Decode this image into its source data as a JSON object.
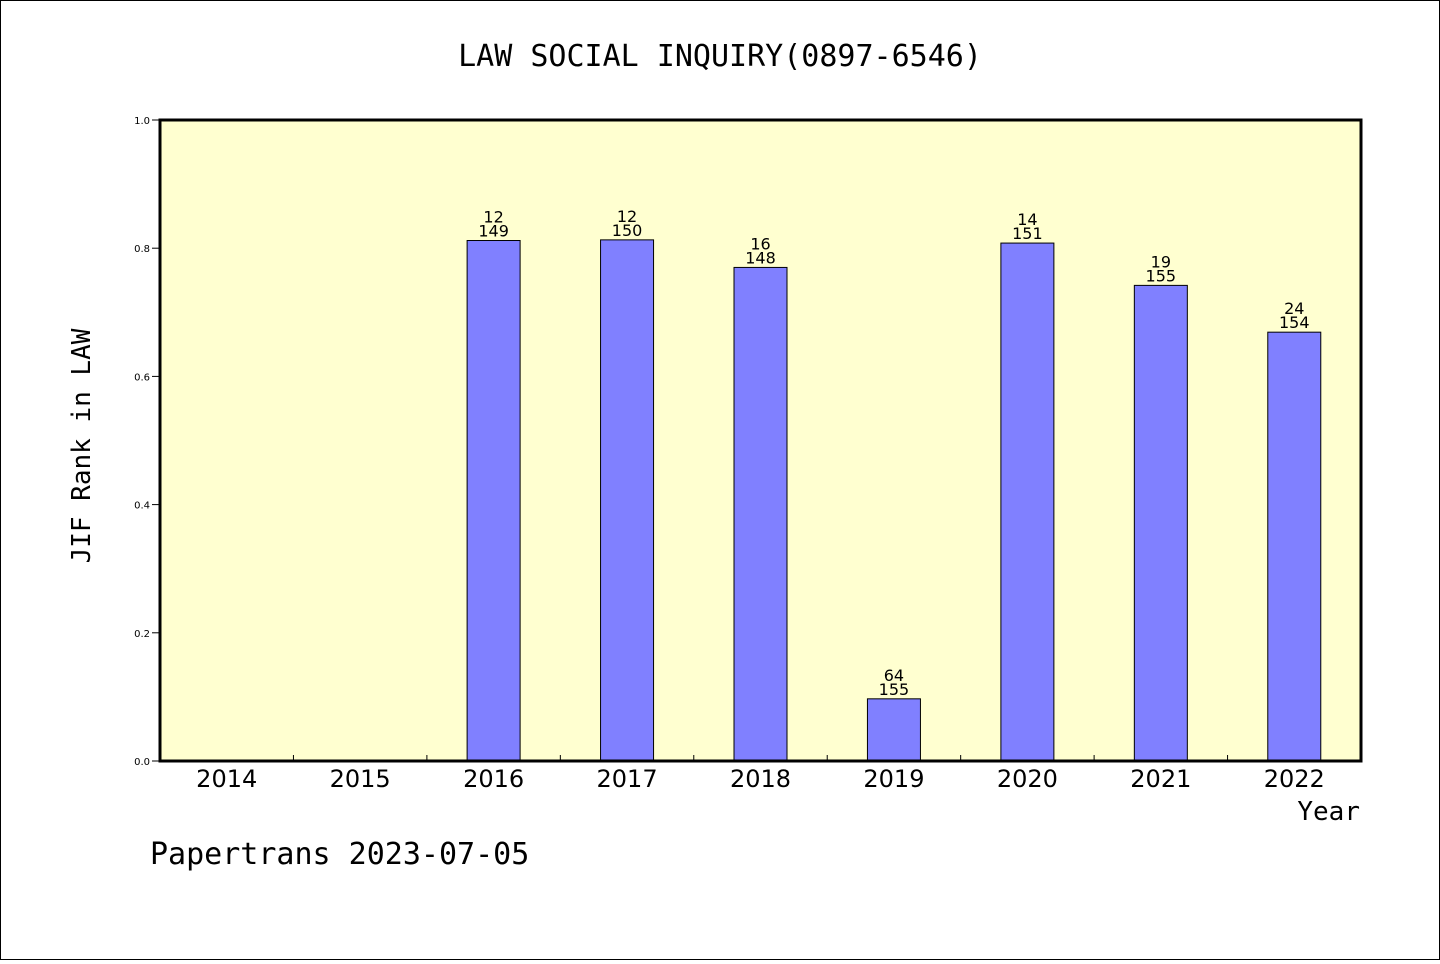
{
  "chart_data": {
    "type": "bar",
    "title": "LAW SOCIAL INQUIRY(0897-6546)",
    "xlabel": "Year",
    "ylabel": "JIF Rank in LAW",
    "categories": [
      "2014",
      "2015",
      "2016",
      "2017",
      "2018",
      "2019",
      "2020",
      "2021",
      "2022"
    ],
    "values": [
      null,
      null,
      0.812,
      0.813,
      0.77,
      0.097,
      0.808,
      0.742,
      0.669
    ],
    "bar_labels": [
      {
        "rank": "",
        "total": ""
      },
      {
        "rank": "",
        "total": ""
      },
      {
        "rank": "12",
        "total": "149"
      },
      {
        "rank": "12",
        "total": "150"
      },
      {
        "rank": "16",
        "total": "148"
      },
      {
        "rank": "64",
        "total": "155"
      },
      {
        "rank": "14",
        "total": "151"
      },
      {
        "rank": "19",
        "total": "155"
      },
      {
        "rank": "24",
        "total": "154"
      }
    ],
    "ylim": [
      0,
      1.0
    ],
    "yticks": [
      "0.0",
      "0.2",
      "0.4",
      "0.6",
      "0.8",
      "1.0"
    ],
    "grid": false,
    "legend": "none",
    "colors": {
      "bar_fill": "#8080ff",
      "plot_background": "#ffffd0",
      "frame": "#000000"
    }
  },
  "footer": {
    "watermark": "Papertrans 2023-07-05"
  }
}
